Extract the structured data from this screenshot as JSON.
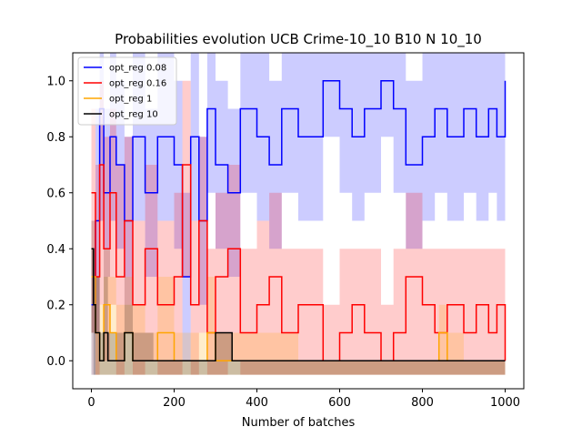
{
  "chart_data": {
    "type": "line",
    "title": "Probabilities evolution UCB Crime-10_10 B10 N 10_10",
    "xlabel": "Number of batches",
    "ylabel": "",
    "xlim": [
      -45,
      1045
    ],
    "ylim": [
      -0.1,
      1.1
    ],
    "xticks": [
      0,
      200,
      400,
      600,
      800,
      1000
    ],
    "yticks": [
      0.0,
      0.2,
      0.4,
      0.6,
      0.8,
      1.0
    ],
    "legend_position": "top-left",
    "grid": false,
    "series": [
      {
        "name": "opt_reg 0.08",
        "color": "#0000ff",
        "band_color": "#0000ff",
        "x": [
          0,
          10,
          20,
          30,
          45,
          60,
          80,
          100,
          130,
          160,
          200,
          220,
          240,
          260,
          280,
          300,
          330,
          360,
          400,
          430,
          460,
          500,
          530,
          560,
          600,
          630,
          660,
          700,
          730,
          760,
          800,
          830,
          860,
          900,
          930,
          960,
          980,
          1000
        ],
        "values": [
          0.2,
          0.5,
          0.9,
          0.6,
          0.8,
          0.7,
          0.5,
          0.8,
          0.6,
          0.8,
          0.7,
          0.3,
          0.8,
          0.5,
          0.9,
          0.7,
          0.6,
          0.9,
          0.8,
          0.7,
          0.9,
          0.8,
          0.8,
          1.0,
          0.9,
          0.8,
          0.9,
          1.0,
          0.9,
          0.7,
          0.8,
          0.9,
          0.8,
          0.9,
          0.8,
          0.9,
          0.8,
          1.0
        ],
        "lower": [
          -0.05,
          0.1,
          0.5,
          0.3,
          0.5,
          0.4,
          0.2,
          0.5,
          0.3,
          0.5,
          0.4,
          0.0,
          0.5,
          0.2,
          0.6,
          0.4,
          0.3,
          0.6,
          0.5,
          0.4,
          0.6,
          0.5,
          0.5,
          0.8,
          0.6,
          0.5,
          0.6,
          0.8,
          0.6,
          0.4,
          0.5,
          0.6,
          0.5,
          0.6,
          0.5,
          0.6,
          0.5,
          0.8
        ],
        "upper": [
          0.5,
          0.9,
          1.1,
          0.9,
          1.1,
          1.0,
          0.8,
          1.1,
          0.9,
          1.1,
          1.0,
          0.6,
          1.1,
          0.8,
          1.1,
          1.0,
          0.9,
          1.1,
          1.1,
          1.0,
          1.1,
          1.1,
          1.1,
          1.1,
          1.1,
          1.1,
          1.1,
          1.1,
          1.1,
          1.0,
          1.1,
          1.1,
          1.1,
          1.1,
          1.1,
          1.1,
          1.1,
          1.0
        ]
      },
      {
        "name": "opt_reg 0.16",
        "color": "#ff0000",
        "band_color": "#ff0000",
        "x": [
          0,
          10,
          20,
          30,
          45,
          60,
          80,
          100,
          130,
          160,
          200,
          220,
          240,
          260,
          280,
          300,
          330,
          360,
          400,
          430,
          460,
          500,
          530,
          560,
          600,
          630,
          660,
          700,
          730,
          760,
          800,
          830,
          860,
          900,
          930,
          960,
          980,
          1000
        ],
        "values": [
          0.6,
          0.3,
          0.7,
          0.4,
          0.6,
          0.3,
          0.5,
          0.2,
          0.4,
          0.2,
          0.3,
          0.7,
          0.2,
          0.5,
          0.1,
          0.3,
          0.4,
          0.1,
          0.2,
          0.3,
          0.1,
          0.2,
          0.2,
          0.0,
          0.1,
          0.2,
          0.1,
          0.0,
          0.1,
          0.3,
          0.2,
          0.1,
          0.2,
          0.1,
          0.2,
          0.1,
          0.2,
          0.0
        ],
        "lower": [
          0.1,
          -0.05,
          0.2,
          0.0,
          0.2,
          -0.05,
          0.1,
          -0.05,
          0.0,
          -0.05,
          -0.05,
          0.3,
          -0.05,
          0.1,
          -0.05,
          -0.05,
          0.0,
          -0.05,
          -0.05,
          -0.05,
          -0.05,
          -0.05,
          -0.05,
          -0.05,
          -0.05,
          -0.05,
          -0.05,
          -0.05,
          -0.05,
          -0.05,
          -0.05,
          -0.05,
          -0.05,
          -0.05,
          -0.05,
          -0.05,
          -0.05,
          -0.05
        ],
        "upper": [
          0.9,
          0.7,
          1.0,
          0.8,
          0.9,
          0.7,
          0.8,
          0.5,
          0.7,
          0.5,
          0.6,
          1.0,
          0.5,
          0.8,
          0.4,
          0.6,
          0.7,
          0.4,
          0.5,
          0.6,
          0.4,
          0.4,
          0.4,
          0.2,
          0.4,
          0.4,
          0.4,
          0.2,
          0.4,
          0.6,
          0.4,
          0.4,
          0.4,
          0.4,
          0.4,
          0.4,
          0.4,
          0.2
        ]
      },
      {
        "name": "opt_reg 1",
        "color": "#ffa500",
        "band_color": "#ffa500",
        "x": [
          0,
          10,
          20,
          30,
          45,
          60,
          80,
          100,
          130,
          160,
          200,
          240,
          280,
          300,
          330,
          360,
          400,
          500,
          600,
          700,
          800,
          840,
          860,
          900,
          1000
        ],
        "values": [
          0.3,
          0.1,
          0.0,
          0.2,
          0.1,
          0.0,
          0.1,
          0.0,
          0.0,
          0.1,
          0.0,
          0.0,
          0.1,
          0.0,
          0.0,
          0.0,
          0.0,
          0.0,
          0.0,
          0.0,
          0.0,
          0.1,
          0.0,
          0.0,
          0.0
        ],
        "lower": [
          -0.05,
          -0.05,
          -0.05,
          -0.05,
          -0.05,
          -0.05,
          -0.05,
          -0.05,
          -0.05,
          -0.05,
          -0.05,
          -0.05,
          -0.05,
          -0.05,
          -0.05,
          -0.05,
          -0.05,
          -0.05,
          -0.05,
          -0.05,
          -0.05,
          -0.05,
          -0.05,
          -0.05,
          -0.05
        ],
        "upper": [
          0.5,
          0.3,
          0.2,
          0.4,
          0.3,
          0.2,
          0.3,
          0.2,
          0.1,
          0.3,
          0.1,
          0.1,
          0.3,
          0.1,
          0.1,
          0.1,
          0.1,
          0.0,
          0.0,
          0.0,
          0.0,
          0.2,
          0.1,
          0.0,
          0.0
        ]
      },
      {
        "name": "opt_reg 10",
        "color": "#000000",
        "band_color": "#000000",
        "x": [
          0,
          5,
          10,
          20,
          30,
          40,
          60,
          80,
          100,
          150,
          200,
          250,
          300,
          340,
          360,
          400,
          500,
          600,
          700,
          800,
          1000
        ],
        "values": [
          0.4,
          0.2,
          0.1,
          0.0,
          0.1,
          0.0,
          0.0,
          0.1,
          0.0,
          0.0,
          0.0,
          0.0,
          0.1,
          0.0,
          0.0,
          0.0,
          0.0,
          0.0,
          0.0,
          0.0,
          0.0
        ],
        "lower": [
          0.1,
          -0.05,
          -0.05,
          -0.05,
          -0.05,
          -0.05,
          -0.05,
          -0.05,
          -0.05,
          -0.05,
          -0.05,
          -0.05,
          -0.05,
          -0.05,
          -0.05,
          -0.05,
          -0.05,
          -0.05,
          -0.05,
          -0.05,
          -0.05
        ],
        "upper": [
          0.4,
          0.4,
          0.3,
          0.1,
          0.3,
          0.1,
          0.1,
          0.2,
          0.1,
          0.0,
          0.0,
          0.0,
          0.1,
          0.0,
          0.0,
          0.0,
          0.0,
          0.0,
          0.0,
          0.0,
          0.0
        ]
      }
    ]
  }
}
